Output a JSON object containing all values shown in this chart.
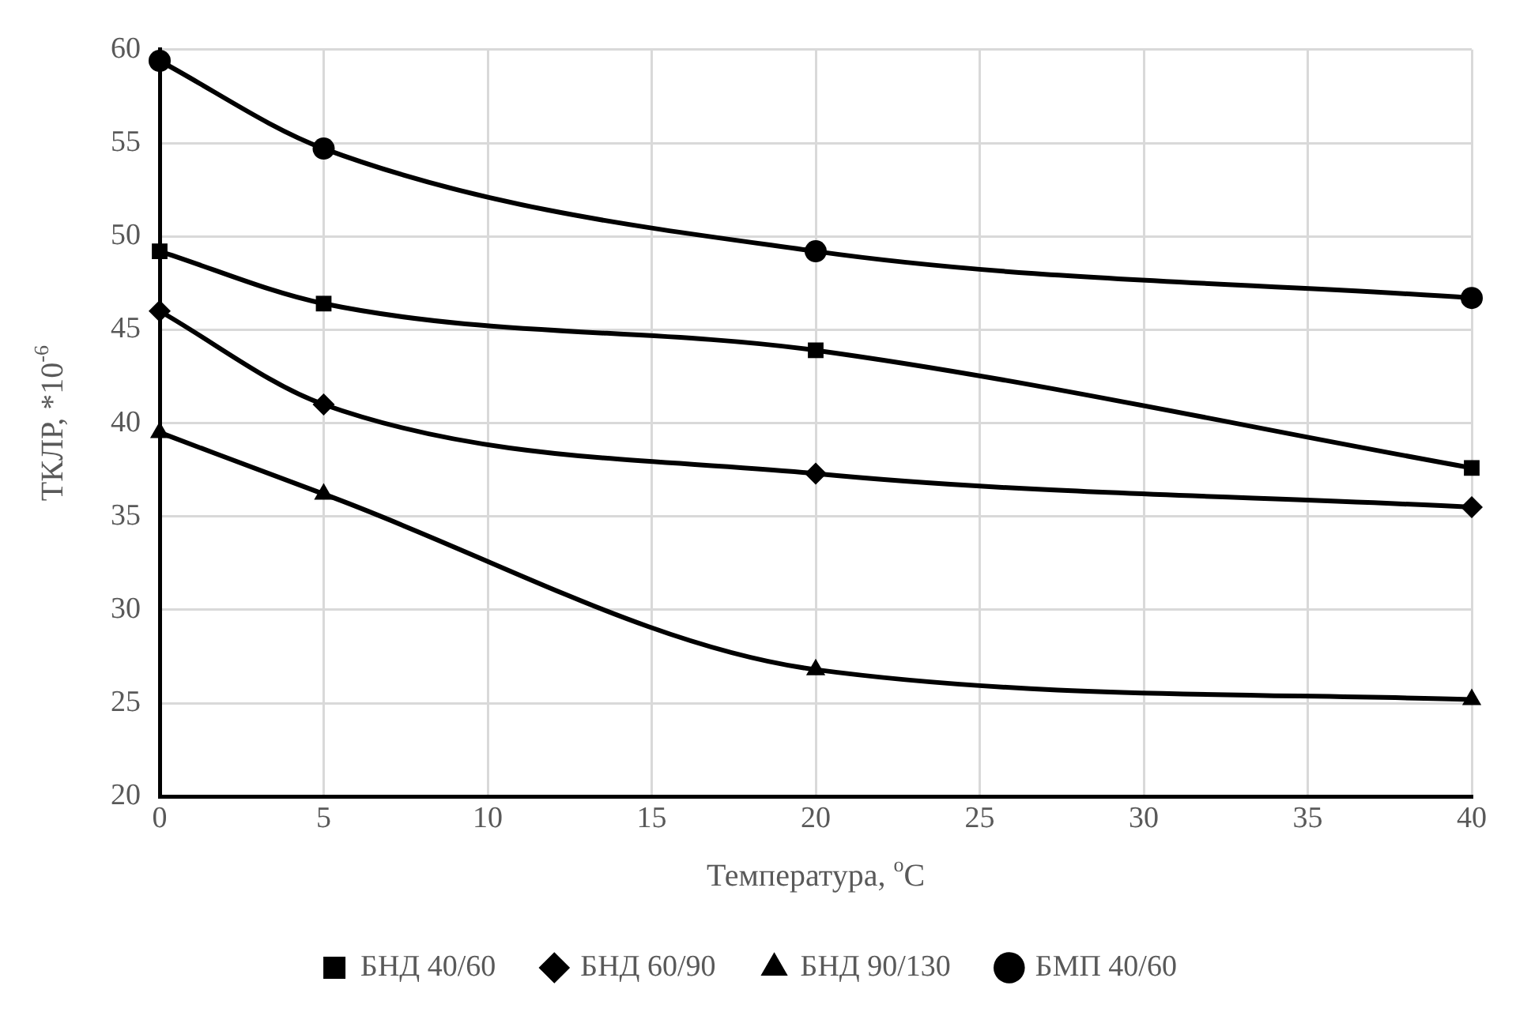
{
  "chart_data": {
    "type": "line",
    "xlabel": "Температура, $^{o}$C",
    "ylabel": "ТКЛР, *10$^{-6}$",
    "x": [
      0,
      5,
      20,
      40
    ],
    "series": [
      {
        "name": "БНД 40/60",
        "color": "#000000",
        "marker": "square",
        "values": [
          49.2,
          46.4,
          43.9,
          37.6
        ]
      },
      {
        "name": "БНД 60/90",
        "color": "#000000",
        "marker": "diamond",
        "values": [
          46.0,
          41.0,
          37.3,
          35.5
        ]
      },
      {
        "name": "БНД 90/130",
        "color": "#000000",
        "marker": "triangle",
        "values": [
          39.5,
          36.2,
          26.8,
          25.2
        ]
      },
      {
        "name": "БМП 40/60",
        "color": "#000000",
        "marker": "circle",
        "values": [
          59.4,
          54.7,
          49.2,
          46.7
        ]
      }
    ],
    "xlim": [
      0,
      40
    ],
    "xticks": [
      0,
      5,
      10,
      15,
      20,
      25,
      30,
      35,
      40
    ],
    "ylim": [
      20,
      60
    ],
    "yticks": [
      20,
      25,
      30,
      35,
      40,
      45,
      50,
      55,
      60
    ],
    "grid": true,
    "legend": "bottom",
    "line_style": "solid"
  }
}
